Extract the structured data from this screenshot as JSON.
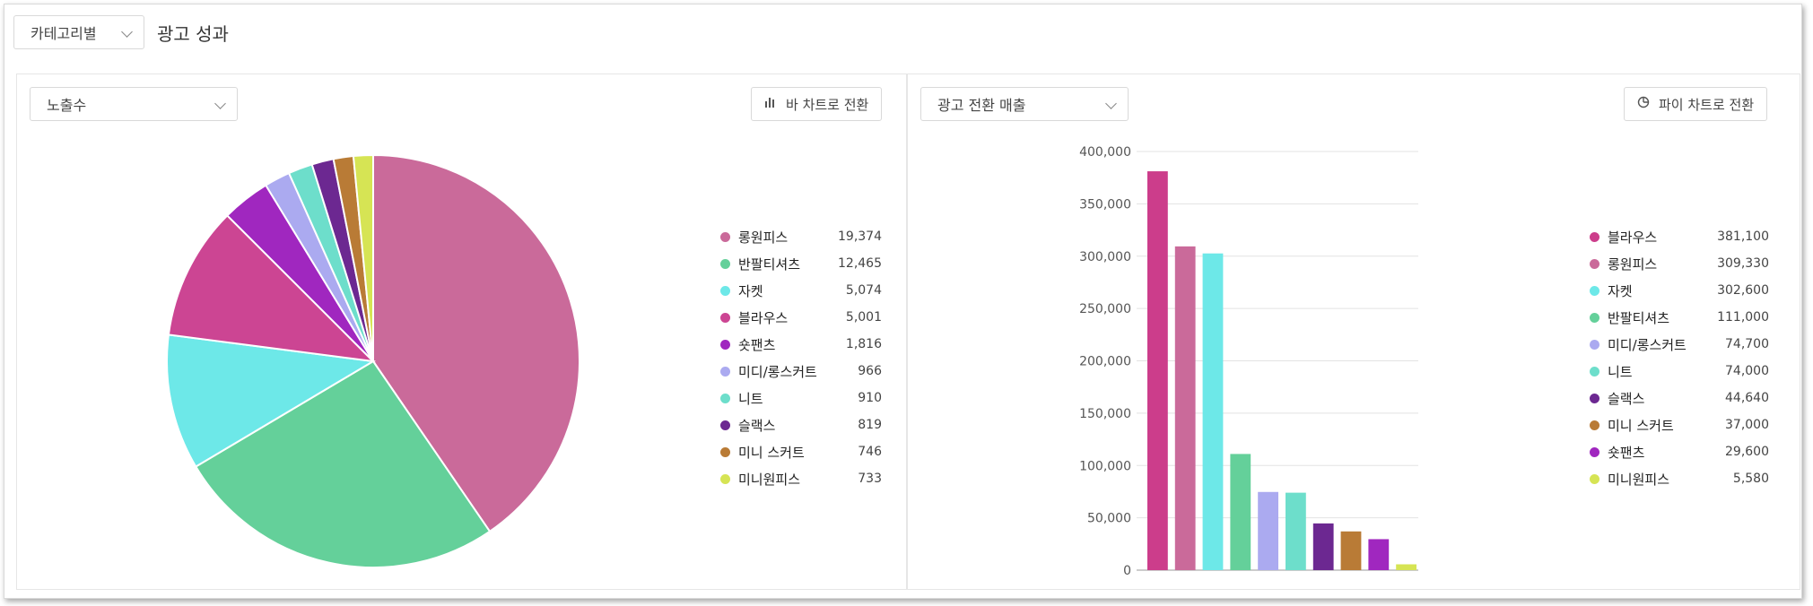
{
  "toolbar": {
    "category_select": "카테고리별",
    "title": "광고 성과"
  },
  "left_panel": {
    "metric_select": "노출수",
    "toggle_button": "바 차트로 전환",
    "toggle_icon": "bar-chart-icon"
  },
  "right_panel": {
    "metric_select": "광고 전환 매출",
    "toggle_button": "파이 차트로 전환",
    "toggle_icon": "pie-chart-icon"
  },
  "chart_data": [
    {
      "type": "pie",
      "categories": [
        "롱원피스",
        "반팔티셔츠",
        "자켓",
        "블라우스",
        "숏팬츠",
        "미디/롱스커트",
        "니트",
        "슬랙스",
        "미니 스커트",
        "미니원피스"
      ],
      "values": [
        19374,
        12465,
        5074,
        5001,
        1816,
        966,
        910,
        819,
        746,
        733
      ],
      "labels": [
        "19,374",
        "12,465",
        "5,074",
        "5,001",
        "1,816",
        "966",
        "910",
        "819",
        "746",
        "733"
      ],
      "colors": [
        "#ca6a9a",
        "#64d09a",
        "#6de8e8",
        "#cc4593",
        "#a027bf",
        "#abaaf0",
        "#6ddecb",
        "#6c2891",
        "#b97b36",
        "#d6e454"
      ],
      "legend_position": "right"
    },
    {
      "type": "bar",
      "categories": [
        "블라우스",
        "롱원피스",
        "자켓",
        "반팔티셔츠",
        "미디/롱스커트",
        "니트",
        "슬랙스",
        "미니 스커트",
        "숏팬츠",
        "미니원피스"
      ],
      "values": [
        381100,
        309330,
        302600,
        111000,
        74700,
        74000,
        44640,
        37000,
        29600,
        5580
      ],
      "labels": [
        "381,100",
        "309,330",
        "302,600",
        "111,000",
        "74,700",
        "74,000",
        "44,640",
        "37,000",
        "29,600",
        "5,580"
      ],
      "colors": [
        "#cc3d8b",
        "#ca6a9a",
        "#6de8e8",
        "#64d09a",
        "#abaaf0",
        "#6ddecb",
        "#6c2891",
        "#b97b36",
        "#a027bf",
        "#d6e454"
      ],
      "ylim": [
        0,
        400000
      ],
      "yticks": [
        "0",
        "50,000",
        "100,000",
        "150,000",
        "200,000",
        "250,000",
        "300,000",
        "350,000",
        "400,000"
      ],
      "grid": true,
      "legend_position": "right"
    }
  ]
}
